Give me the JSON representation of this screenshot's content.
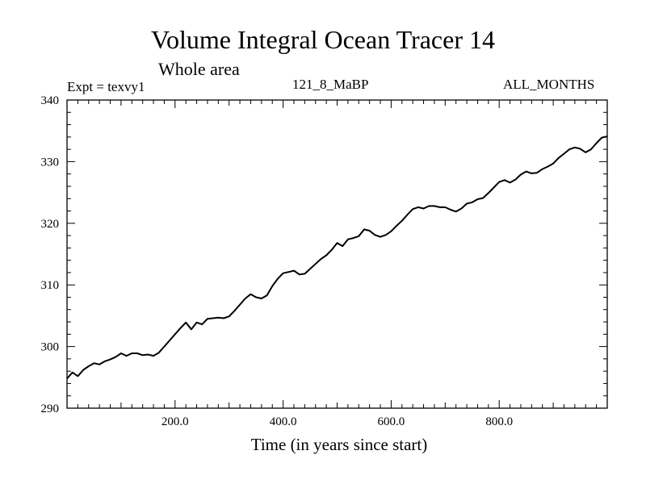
{
  "header": {
    "title": "Volume Integral Ocean Tracer 14",
    "subtitle": "Whole area",
    "experiment": "Expt = texvy1",
    "run_id": "121_8_MaBP",
    "months": "ALL_MONTHS"
  },
  "chart_data": {
    "type": "line",
    "title": "Volume Integral Ocean Tracer 14",
    "subtitle": "Whole area",
    "xlabel": "Time (in years since start)",
    "ylabel": "",
    "xlim": [
      0,
      1000
    ],
    "ylim": [
      290,
      340
    ],
    "x_ticks": [
      200,
      400,
      600,
      800
    ],
    "x_tick_labels": [
      "200.0",
      "400.0",
      "600.0",
      "800.0"
    ],
    "y_ticks": [
      290,
      300,
      310,
      320,
      330,
      340
    ],
    "y_tick_labels": [
      "290",
      "300",
      "310",
      "320",
      "330",
      "340"
    ],
    "grid": false,
    "series": [
      {
        "name": "Volume Integral Ocean Tracer 14",
        "color": "#000000",
        "x": [
          0,
          10,
          20,
          30,
          40,
          50,
          60,
          70,
          80,
          90,
          100,
          110,
          120,
          130,
          140,
          150,
          160,
          170,
          180,
          190,
          200,
          210,
          220,
          230,
          240,
          250,
          260,
          270,
          280,
          290,
          300,
          310,
          320,
          330,
          340,
          350,
          360,
          370,
          380,
          390,
          400,
          410,
          420,
          430,
          440,
          450,
          460,
          470,
          480,
          490,
          500,
          510,
          520,
          530,
          540,
          550,
          560,
          570,
          580,
          590,
          600,
          610,
          620,
          630,
          640,
          650,
          660,
          670,
          680,
          690,
          700,
          710,
          720,
          730,
          740,
          750,
          760,
          770,
          780,
          790,
          800,
          810,
          820,
          830,
          840,
          850,
          860,
          870,
          880,
          890,
          900,
          910,
          920,
          930,
          940,
          950,
          960,
          970,
          980,
          990,
          1000
        ],
        "values": [
          294.8,
          295.8,
          295.2,
          296.2,
          296.8,
          297.3,
          297.1,
          297.6,
          297.9,
          298.3,
          298.9,
          298.5,
          298.9,
          298.9,
          298.6,
          298.7,
          298.5,
          299.0,
          300.0,
          301.0,
          302.0,
          303.0,
          303.9,
          302.8,
          303.9,
          303.6,
          304.5,
          304.6,
          304.7,
          304.6,
          304.9,
          305.8,
          306.8,
          307.8,
          308.5,
          308.0,
          307.8,
          308.3,
          309.8,
          311.0,
          311.9,
          312.1,
          312.3,
          311.7,
          311.8,
          312.6,
          313.4,
          314.2,
          314.8,
          315.7,
          316.8,
          316.3,
          317.4,
          317.6,
          317.9,
          319.0,
          318.8,
          318.1,
          317.8,
          318.1,
          318.7,
          319.6,
          320.4,
          321.4,
          322.3,
          322.6,
          322.4,
          322.8,
          322.8,
          322.6,
          322.6,
          322.2,
          321.9,
          322.4,
          323.2,
          323.4,
          323.9,
          324.1,
          324.9,
          325.8,
          326.7,
          327.0,
          326.6,
          327.1,
          327.9,
          328.4,
          328.1,
          328.2,
          328.8,
          329.2,
          329.7,
          330.6,
          331.3,
          332.0,
          332.3,
          332.1,
          331.5,
          332.0,
          333.0,
          333.9,
          334.1
        ]
      }
    ]
  }
}
